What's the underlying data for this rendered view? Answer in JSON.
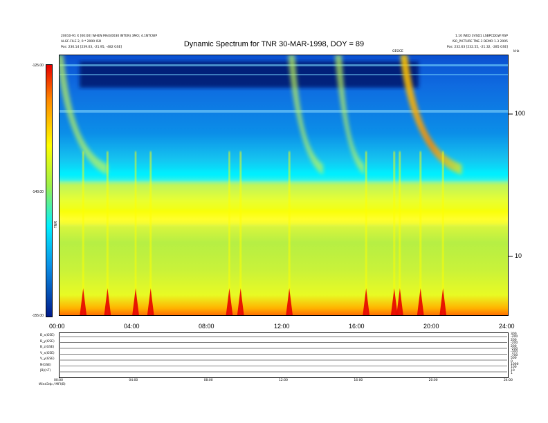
{
  "chart_data": {
    "type": "heatmap",
    "title": "Dynamic Spectrum for TNR 30-MAR-1998, DOY = 89",
    "header": {
      "line1_left": "20010-91 X [00:00] WHEN MAX(0030 INTEN) 3MO; 4.1NTCWP",
      "line2_left": "ALGF-FILE 2, 0 * 2000 ISO",
      "line3_left": "Pos:   230.14 [239.03, -21.95, -482 GSE]",
      "line1_right": "1.10 WED 3VSD1   LSBPCDGW RSP",
      "line2_right": "ISO_PICTURE  TNE.3 DEMO 1.3 2005",
      "line3_right": "Pos:   232.63 [232.55, -21.32, -285 GSE]",
      "marker_label": "GEOCE",
      "khz_label": "kHz"
    },
    "x_axis": {
      "range_hours": [
        0,
        24
      ],
      "tick_labels": [
        "00:00",
        "04:00",
        "08:00",
        "12:00",
        "16:00",
        "20:00",
        "24:00"
      ]
    },
    "y_axis_right": {
      "scale": "log",
      "unit": "kHz",
      "range": [
        4,
        220
      ],
      "tick_labels": [
        "100",
        "10"
      ]
    },
    "colorbar": {
      "label": "TNR",
      "range": [
        -155,
        -125
      ],
      "tick_labels": [
        "-125.00",
        "-140.00",
        "-155.00"
      ]
    },
    "features": [
      {
        "name": "type III burst",
        "start_hour": 0.25,
        "end_hour": 2.6
      },
      {
        "name": "type III burst",
        "start_hour": 12.6,
        "end_hour": 14.1
      },
      {
        "name": "type III burst",
        "start_hour": 15.1,
        "end_hour": 16.3
      },
      {
        "name": "intense burst",
        "start_hour": 18.6,
        "end_hour": 21.5
      }
    ],
    "spikes_hours": [
      1.3,
      2.6,
      4.1,
      4.9,
      9.1,
      9.7,
      12.3,
      16.4,
      17.9,
      18.2,
      19.3,
      20.5
    ]
  },
  "bottom_panel": {
    "left_labels": [
      "B_x(GSE)",
      "B_y(GSE)",
      "B_z(GSE)",
      "V_x(GSE)",
      "V_y(GSE)",
      "N(GSE)",
      "|B|(nT)"
    ],
    "right_labels": [
      "300",
      "-200",
      "200",
      "-200",
      "200",
      "-200",
      "-300",
      "-700",
      "500",
      "0",
      "1000",
      "100",
      "10",
      "1"
    ],
    "time_labels": [
      "00:00",
      "04:00",
      "08:00",
      "12:00",
      "16:00",
      "20:00",
      "24:00"
    ],
    "footer_left": "Wind3dp / MFI(B)"
  },
  "colors": {
    "background": "#0a8fe6",
    "cyan": "#00f0ff",
    "yellow": "#ffff00",
    "green": "#9cf04a",
    "orange": "#ff8a00",
    "red": "#e60000"
  }
}
